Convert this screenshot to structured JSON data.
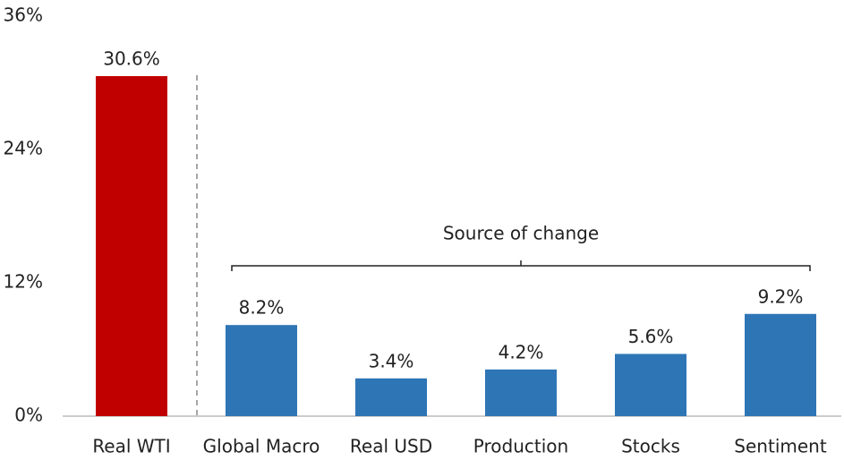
{
  "chart_data": {
    "type": "bar",
    "categories": [
      "Real WTI",
      "Global Macro",
      "Real USD",
      "Production",
      "Stocks",
      "Sentiment"
    ],
    "values": [
      30.6,
      8.2,
      3.4,
      4.2,
      5.6,
      9.2
    ],
    "value_labels": [
      "30.6%",
      "8.2%",
      "3.4%",
      "4.2%",
      "5.6%",
      "9.2%"
    ],
    "colors": [
      "#c00000",
      "#2e75b6",
      "#2e75b6",
      "#2e75b6",
      "#2e75b6",
      "#2e75b6"
    ],
    "ylim": [
      0,
      36
    ],
    "yticks": [
      {
        "value": 0,
        "label": "0%"
      },
      {
        "value": 12,
        "label": "12%"
      },
      {
        "value": 24,
        "label": "24%"
      },
      {
        "value": 36,
        "label": "36%"
      }
    ],
    "annotation": "Source of change",
    "grid": false
  }
}
